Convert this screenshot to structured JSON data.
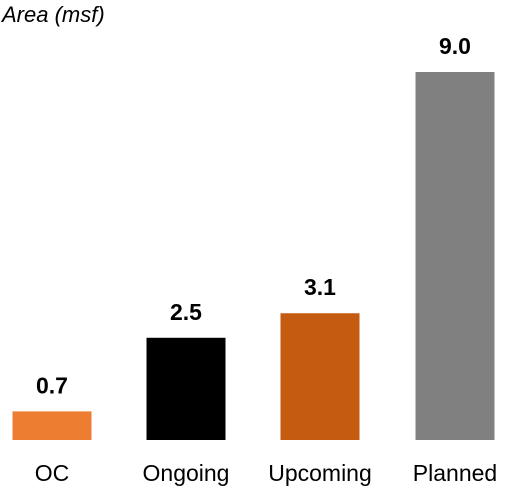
{
  "chart_data": {
    "type": "bar",
    "title": "",
    "xlabel": "",
    "ylabel": "Area (msf)",
    "categories": [
      "OC",
      "Ongoing",
      "Upcoming",
      "Planned"
    ],
    "values": [
      0.7,
      2.5,
      3.1,
      9.0
    ],
    "value_labels": [
      "0.7",
      "2.5",
      "3.1",
      "9.0"
    ],
    "colors": [
      "#ED7D31",
      "#000000",
      "#C55A11",
      "#808080"
    ],
    "ylim": [
      0,
      9.0
    ],
    "grid": false,
    "legend": "none"
  }
}
